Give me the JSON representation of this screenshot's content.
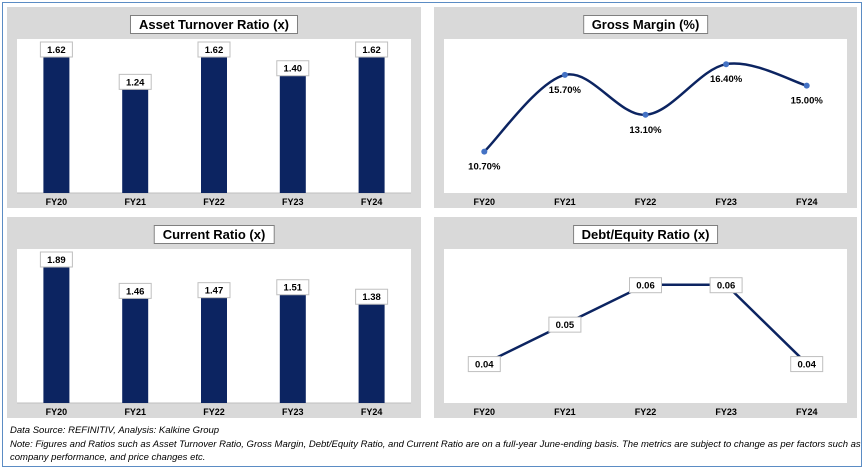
{
  "colors": {
    "bar": "#0c2461",
    "line": "#0c2461",
    "marker": "#4472c4",
    "panel_bg": "#d9d9d9"
  },
  "notes": {
    "source": "Data Source: REFINITIV, Analysis: Kalkine Group",
    "note_line1": "Note: Figures and Ratios such as Asset Turnover Ratio, Gross Margin, Debt/Equity Ratio, and Current Ratio  are on a full-year June-ending basis. The metrics are subject to change as per factors such as",
    "note_line2": "company performance, and price changes etc."
  },
  "chart_data": [
    {
      "type": "bar",
      "title": "Asset Turnover Ratio (x)",
      "categories": [
        "FY20",
        "FY21",
        "FY22",
        "FY23",
        "FY24"
      ],
      "values": [
        1.62,
        1.24,
        1.62,
        1.4,
        1.62
      ],
      "labels": [
        "1.62",
        "1.24",
        "1.62",
        "1.40",
        "1.62"
      ],
      "ylim": [
        0,
        1.62
      ],
      "grid": false
    },
    {
      "type": "line",
      "title": "Gross Margin (%)",
      "categories": [
        "FY20",
        "FY21",
        "FY22",
        "FY23",
        "FY24"
      ],
      "values": [
        10.7,
        15.7,
        13.1,
        16.4,
        15.0
      ],
      "labels": [
        "10.70%",
        "15.70%",
        "13.10%",
        "16.40%",
        "15.00%"
      ],
      "ylim": [
        8,
        17
      ],
      "smooth": true,
      "grid": false
    },
    {
      "type": "bar",
      "title": "Current Ratio (x)",
      "categories": [
        "FY20",
        "FY21",
        "FY22",
        "FY23",
        "FY24"
      ],
      "values": [
        1.89,
        1.46,
        1.47,
        1.51,
        1.38
      ],
      "labels": [
        "1.89",
        "1.46",
        "1.47",
        "1.51",
        "1.38"
      ],
      "ylim": [
        0,
        1.89
      ],
      "grid": false
    },
    {
      "type": "line",
      "title": "Debt/Equity Ratio (x)",
      "categories": [
        "FY20",
        "FY21",
        "FY22",
        "FY23",
        "FY24"
      ],
      "values": [
        0.04,
        0.05,
        0.06,
        0.06,
        0.04
      ],
      "labels": [
        "0.04",
        "0.05",
        "0.06",
        "0.06",
        "0.04"
      ],
      "ylim": [
        0.03,
        0.065
      ],
      "smooth": false,
      "grid": false
    }
  ]
}
